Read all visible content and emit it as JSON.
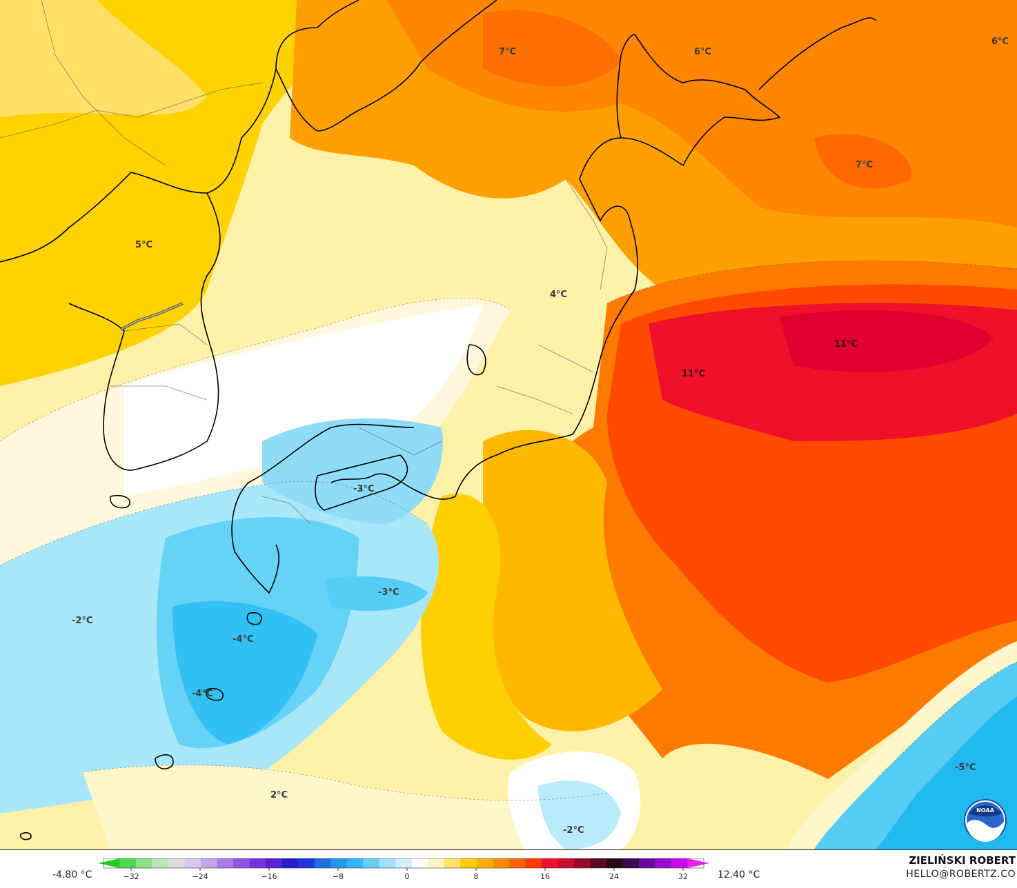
{
  "map": {
    "labels": [
      {
        "text": "7°C",
        "tone": "dark"
      },
      {
        "text": "6°C",
        "tone": "dark"
      },
      {
        "text": "6°C",
        "tone": "dark"
      },
      {
        "text": "7°C",
        "tone": "dark"
      },
      {
        "text": "5°C",
        "tone": "dark"
      },
      {
        "text": "4°C",
        "tone": "dark"
      },
      {
        "text": "11°C",
        "tone": "light"
      },
      {
        "text": "11°C",
        "tone": "light"
      },
      {
        "text": "-3°C",
        "tone": "dark"
      },
      {
        "text": "-3°C",
        "tone": "dark"
      },
      {
        "text": "-2°C",
        "tone": "dark"
      },
      {
        "text": "-4°C",
        "tone": "dark"
      },
      {
        "text": "-4°C",
        "tone": "dark"
      },
      {
        "text": "2°C",
        "tone": "dark"
      },
      {
        "text": "-2°C",
        "tone": "dark"
      },
      {
        "text": "-5°C",
        "tone": "dark"
      }
    ]
  },
  "legend": {
    "min_label": "-4.80 °C",
    "max_label": "12.40 °C",
    "ticks": [
      "−32",
      "−24",
      "−16",
      "−8",
      "0",
      "8",
      "16",
      "24",
      "32"
    ],
    "colors": [
      "#1fcf1f",
      "#4fd84f",
      "#8be08b",
      "#b9e6b9",
      "#dcdcdc",
      "#d6c8ec",
      "#c2a6ea",
      "#a97ce6",
      "#8f55e0",
      "#7632dc",
      "#5a22d6",
      "#2a1cd0",
      "#1c38dc",
      "#1f6ee6",
      "#2596ee",
      "#33b6f5",
      "#66cff8",
      "#9fe0fa",
      "#d0f0fc",
      "#ffffff",
      "#fff5c0",
      "#ffe266",
      "#ffcc00",
      "#ffad00",
      "#ff8a00",
      "#ff6400",
      "#ff3c00",
      "#f0102a",
      "#c8102e",
      "#9a0a2a",
      "#5a0a1a",
      "#221010",
      "#3a0a4a",
      "#6a0aa0",
      "#9a0ad0",
      "#c80ae6",
      "#ee20ee"
    ]
  },
  "credit": {
    "author": "ZIELIŃSKI ROBERT",
    "email": "HELLO@ROBERTZ.CO",
    "logo_text": "NOAA"
  }
}
